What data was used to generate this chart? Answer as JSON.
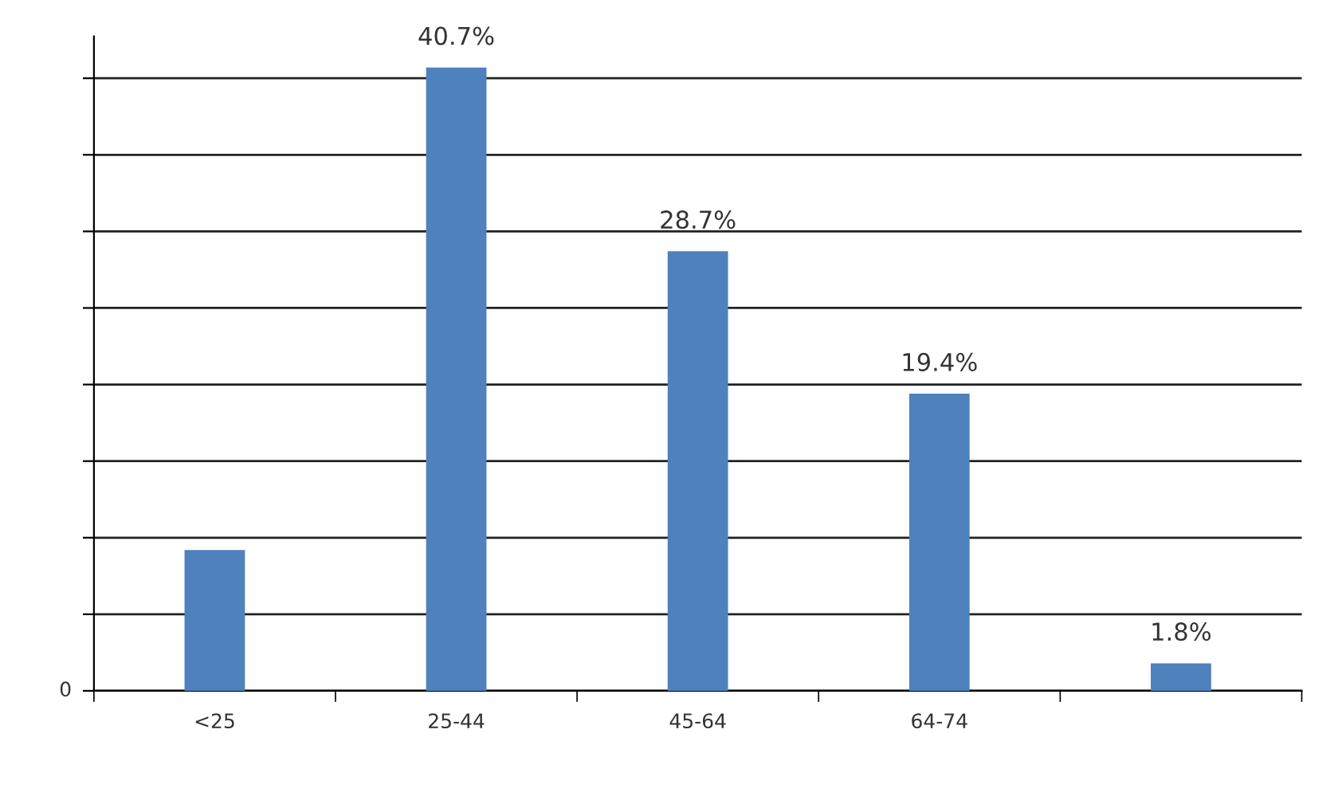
{
  "chart_data": {
    "type": "bar",
    "categories": [
      "<25",
      "25-44",
      "45-64",
      "64-74",
      null
    ],
    "values": [
      9.2,
      40.7,
      28.7,
      19.4,
      1.8
    ],
    "value_labels": [
      null,
      "40.7%",
      "28.7%",
      "19.4%",
      "1.8%"
    ],
    "color": "#4f81bd",
    "annotations": [
      "0"
    ],
    "grid": "y"
  }
}
